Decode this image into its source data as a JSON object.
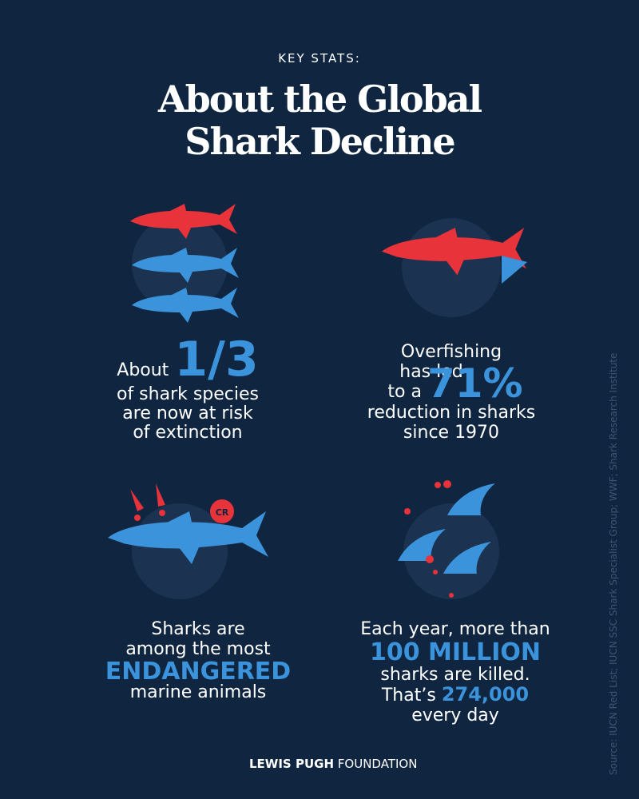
{
  "header": {
    "kicker": "KEY STATS:",
    "title_lines": [
      "About the Global",
      "Shark Decline"
    ]
  },
  "stats": [
    {
      "lead": "About",
      "highlight": "1/3",
      "lines": [
        "of shark species",
        "are now at risk",
        "of extinction"
      ]
    },
    {
      "lines_before": [
        "Overfishing",
        "has led"
      ],
      "lead": "to a",
      "highlight": "71%",
      "lines": [
        "reduction in sharks",
        "since 1970"
      ]
    },
    {
      "badge": "CR",
      "lines_before": [
        "Sharks are",
        "among the most"
      ],
      "highlight": "ENDANGERED",
      "lines": [
        "marine animals"
      ]
    },
    {
      "lines_before": [
        "Each year, more than"
      ],
      "highlight": "100 MILLION",
      "lines": [
        "sharks are killed."
      ],
      "lead": "That’s",
      "highlight2": "274,000",
      "tail": "every day"
    }
  ],
  "source": "Source: IUCN Red List; IUCN SSC Shark Specialist Group; WWF; Shark Research Institute",
  "footer": {
    "bold": "LEWIS PUGH",
    "regular": "FOUNDATION"
  }
}
